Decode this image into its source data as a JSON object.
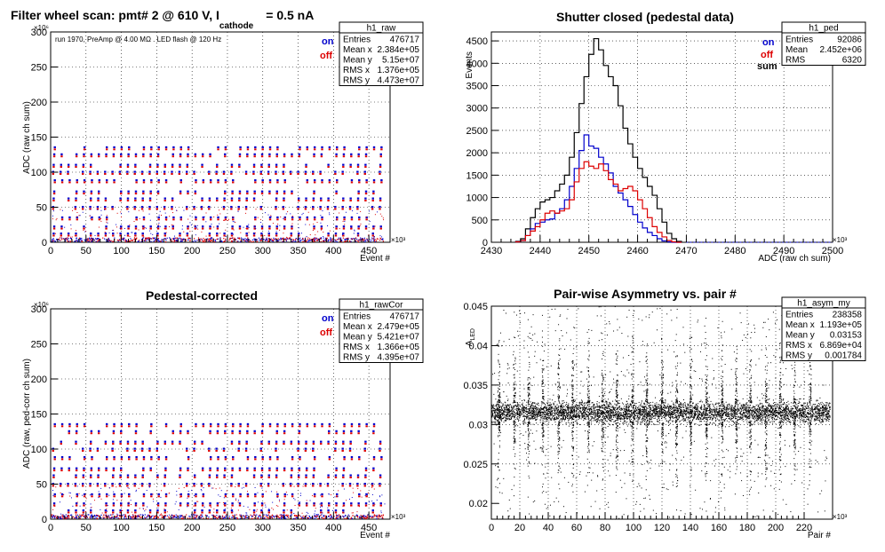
{
  "colors": {
    "on": "#0000cc",
    "off": "#dd0000",
    "sum": "#000000"
  },
  "legend": {
    "on": "on",
    "off": "off",
    "sum": "sum"
  },
  "chart_data": [
    {
      "id": "raw",
      "type": "scatter",
      "title_main": "Filter wheel scan: pmt#   2 @   610 V, I",
      "title_sub": "cathode",
      "title_end": "= 0.5 nA",
      "note": "run 1970, PreAmp @ 4.00 MΩ . LED flash @  120 Hz",
      "xlabel": "Event #",
      "ylabel": "ADC (raw ch sum)",
      "x_exponent": "×10³",
      "y_exponent": "×10⁶",
      "xlim": [
        0,
        480
      ],
      "ylim": [
        0,
        300
      ],
      "xticks": [
        0,
        50,
        100,
        150,
        200,
        250,
        300,
        350,
        400,
        450
      ],
      "yticks": [
        0,
        50,
        100,
        150,
        200,
        250,
        300
      ],
      "levels_on": [
        0,
        12,
        22,
        35,
        50,
        62,
        72,
        88,
        100,
        110,
        125,
        135
      ],
      "levels_off": [
        0,
        12,
        22,
        35,
        50,
        62,
        72,
        88,
        100,
        110,
        125,
        135
      ],
      "stats_box": {
        "name": "h1_raw",
        "rows": [
          [
            "Entries",
            "476717"
          ],
          [
            "Mean x",
            "2.384e+05"
          ],
          [
            "Mean y",
            "5.15e+07"
          ],
          [
            "RMS x",
            "1.376e+05"
          ],
          [
            "RMS y",
            "4.473e+07"
          ]
        ]
      }
    },
    {
      "id": "ped",
      "type": "line",
      "title": "Shutter closed (pedestal data)",
      "xlabel": "ADC (raw ch sum)",
      "ylabel": "Events",
      "x_exponent": "×10³",
      "xlim": [
        2430,
        2500
      ],
      "ylim": [
        0,
        4700
      ],
      "xticks": [
        2430,
        2440,
        2450,
        2460,
        2470,
        2480,
        2490,
        2500
      ],
      "yticks": [
        0,
        500,
        1000,
        1500,
        2000,
        2500,
        3000,
        3500,
        4000,
        4500
      ],
      "bin_edges_start": 2435,
      "bin_width": 1,
      "series": [
        {
          "name": "sum",
          "values": [
            20,
            80,
            300,
            550,
            750,
            900,
            950,
            1000,
            1150,
            1300,
            1500,
            1900,
            2450,
            3100,
            3700,
            4200,
            4550,
            4300,
            3950,
            3700,
            3500,
            3050,
            2550,
            2200,
            1900,
            1650,
            1450,
            1250,
            1050,
            750,
            450,
            200,
            80,
            20
          ]
        },
        {
          "name": "on",
          "values": [
            10,
            40,
            150,
            300,
            420,
            450,
            500,
            520,
            650,
            750,
            950,
            1250,
            1650,
            2050,
            2400,
            2150,
            2100,
            1900,
            1750,
            1550,
            1250,
            1100,
            950,
            800,
            620,
            450,
            320,
            220,
            150,
            80,
            30,
            10,
            0,
            0
          ]
        },
        {
          "name": "off",
          "values": [
            10,
            40,
            150,
            250,
            350,
            500,
            650,
            700,
            650,
            700,
            750,
            950,
            1350,
            1650,
            1800,
            1700,
            1650,
            1750,
            1600,
            1400,
            1300,
            1150,
            1200,
            1250,
            1150,
            950,
            750,
            550,
            350,
            220,
            120,
            40,
            10,
            0
          ]
        }
      ],
      "stats_box": {
        "name": "h1_ped",
        "rows": [
          [
            "Entries",
            "92086"
          ],
          [
            "Mean",
            "2.452e+06"
          ],
          [
            "RMS",
            "6320"
          ]
        ]
      }
    },
    {
      "id": "rawcor",
      "type": "scatter",
      "title": "Pedestal-corrected",
      "xlabel": "Event #",
      "ylabel": "ADC (raw, ped-corr ch sum)",
      "x_exponent": "×10³",
      "y_exponent": "×10⁶",
      "xlim": [
        0,
        480
      ],
      "ylim": [
        0,
        300
      ],
      "xticks": [
        0,
        50,
        100,
        150,
        200,
        250,
        300,
        350,
        400,
        450
      ],
      "yticks": [
        0,
        50,
        100,
        150,
        200,
        250,
        300
      ],
      "levels_on": [
        0,
        12,
        22,
        35,
        50,
        62,
        72,
        88,
        100,
        110,
        125,
        135
      ],
      "levels_off": [
        0,
        12,
        22,
        35,
        50,
        62,
        72,
        88,
        100,
        110,
        125,
        135
      ],
      "stats_box": {
        "name": "h1_rawCor",
        "rows": [
          [
            "Entries",
            "476717"
          ],
          [
            "Mean x",
            "2.479e+05"
          ],
          [
            "Mean y",
            "5.421e+07"
          ],
          [
            "RMS x",
            "1.366e+05"
          ],
          [
            "RMS y",
            "4.395e+07"
          ]
        ]
      }
    },
    {
      "id": "asym",
      "type": "scatter",
      "title": "Pair-wise Asymmetry vs. pair #",
      "xlabel": "Pair #",
      "ylabel_main": "A",
      "ylabel_sub": "LED",
      "x_exponent": "×10³",
      "xlim": [
        0,
        240
      ],
      "ylim": [
        0.018,
        0.045
      ],
      "xticks": [
        0,
        20,
        40,
        60,
        80,
        100,
        120,
        140,
        160,
        180,
        200,
        220
      ],
      "yticks": [
        0.02,
        0.025,
        0.03,
        0.035,
        0.04,
        0.045
      ],
      "ytick_labels": [
        "0.02",
        "0.025",
        "0.03",
        "0.035",
        "0.04",
        "0.045"
      ],
      "band_center": 0.0316,
      "band_halfwidth": 0.0012,
      "spike_positions": [
        5,
        16,
        26,
        36,
        47,
        57,
        68,
        78,
        88,
        99,
        109,
        120,
        130,
        140,
        151,
        162,
        172,
        182,
        193,
        203,
        213,
        224
      ],
      "stats_box": {
        "name": "h1_asym_my",
        "rows": [
          [
            "Entries",
            "238358"
          ],
          [
            "Mean x",
            "1.193e+05"
          ],
          [
            "Mean y",
            "0.03153"
          ],
          [
            "RMS x",
            "6.869e+04"
          ],
          [
            "RMS y",
            "0.001784"
          ]
        ]
      }
    }
  ]
}
